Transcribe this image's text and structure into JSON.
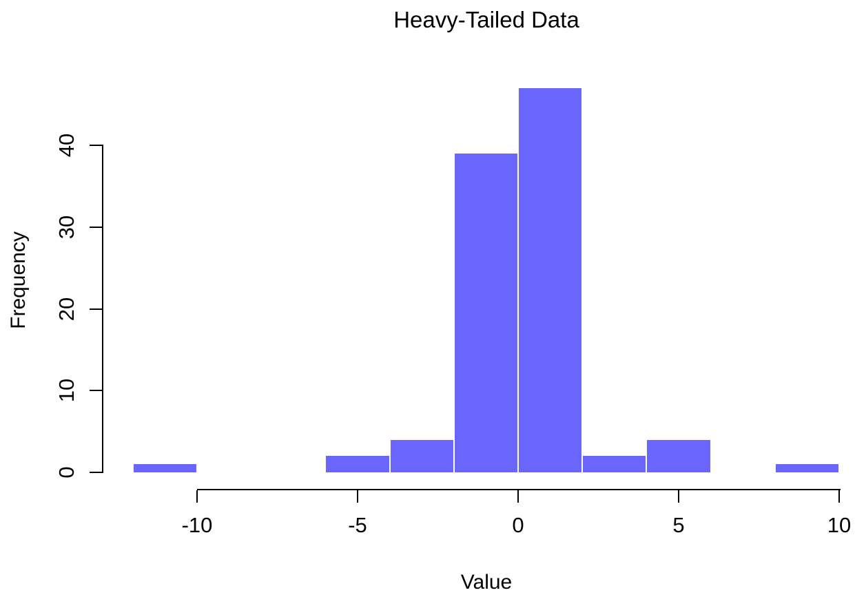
{
  "page": {
    "background": "#ffffff"
  },
  "chart_data": {
    "type": "bar",
    "subtype": "histogram",
    "title": "Heavy-Tailed Data",
    "xlabel": "Value",
    "ylabel": "Frequency",
    "bar_color": "#6A66FB",
    "bar_border_color": "#ffffff",
    "axis_color": "#000000",
    "grid": false,
    "legend": null,
    "bin_width": 2,
    "bins": [
      {
        "x0": -12,
        "x1": -10,
        "count": 1
      },
      {
        "x0": -10,
        "x1": -8,
        "count": 0
      },
      {
        "x0": -8,
        "x1": -6,
        "count": 0
      },
      {
        "x0": -6,
        "x1": -4,
        "count": 2
      },
      {
        "x0": -4,
        "x1": -2,
        "count": 4
      },
      {
        "x0": -2,
        "x1": 0,
        "count": 39
      },
      {
        "x0": 0,
        "x1": 2,
        "count": 47
      },
      {
        "x0": 2,
        "x1": 4,
        "count": 2
      },
      {
        "x0": 4,
        "x1": 6,
        "count": 4
      },
      {
        "x0": 6,
        "x1": 8,
        "count": 0
      },
      {
        "x0": 8,
        "x1": 10,
        "count": 1
      }
    ],
    "x_ticks": [
      "-10",
      "-5",
      "0",
      "5",
      "10"
    ],
    "x_tick_values": [
      -10,
      -5,
      0,
      5,
      10
    ],
    "y_ticks": [
      "0",
      "10",
      "20",
      "30",
      "40"
    ],
    "y_tick_values": [
      0,
      10,
      20,
      30,
      40
    ],
    "xlim": [
      -12,
      10
    ],
    "ylim": [
      0,
      47
    ],
    "total_count": 100
  }
}
